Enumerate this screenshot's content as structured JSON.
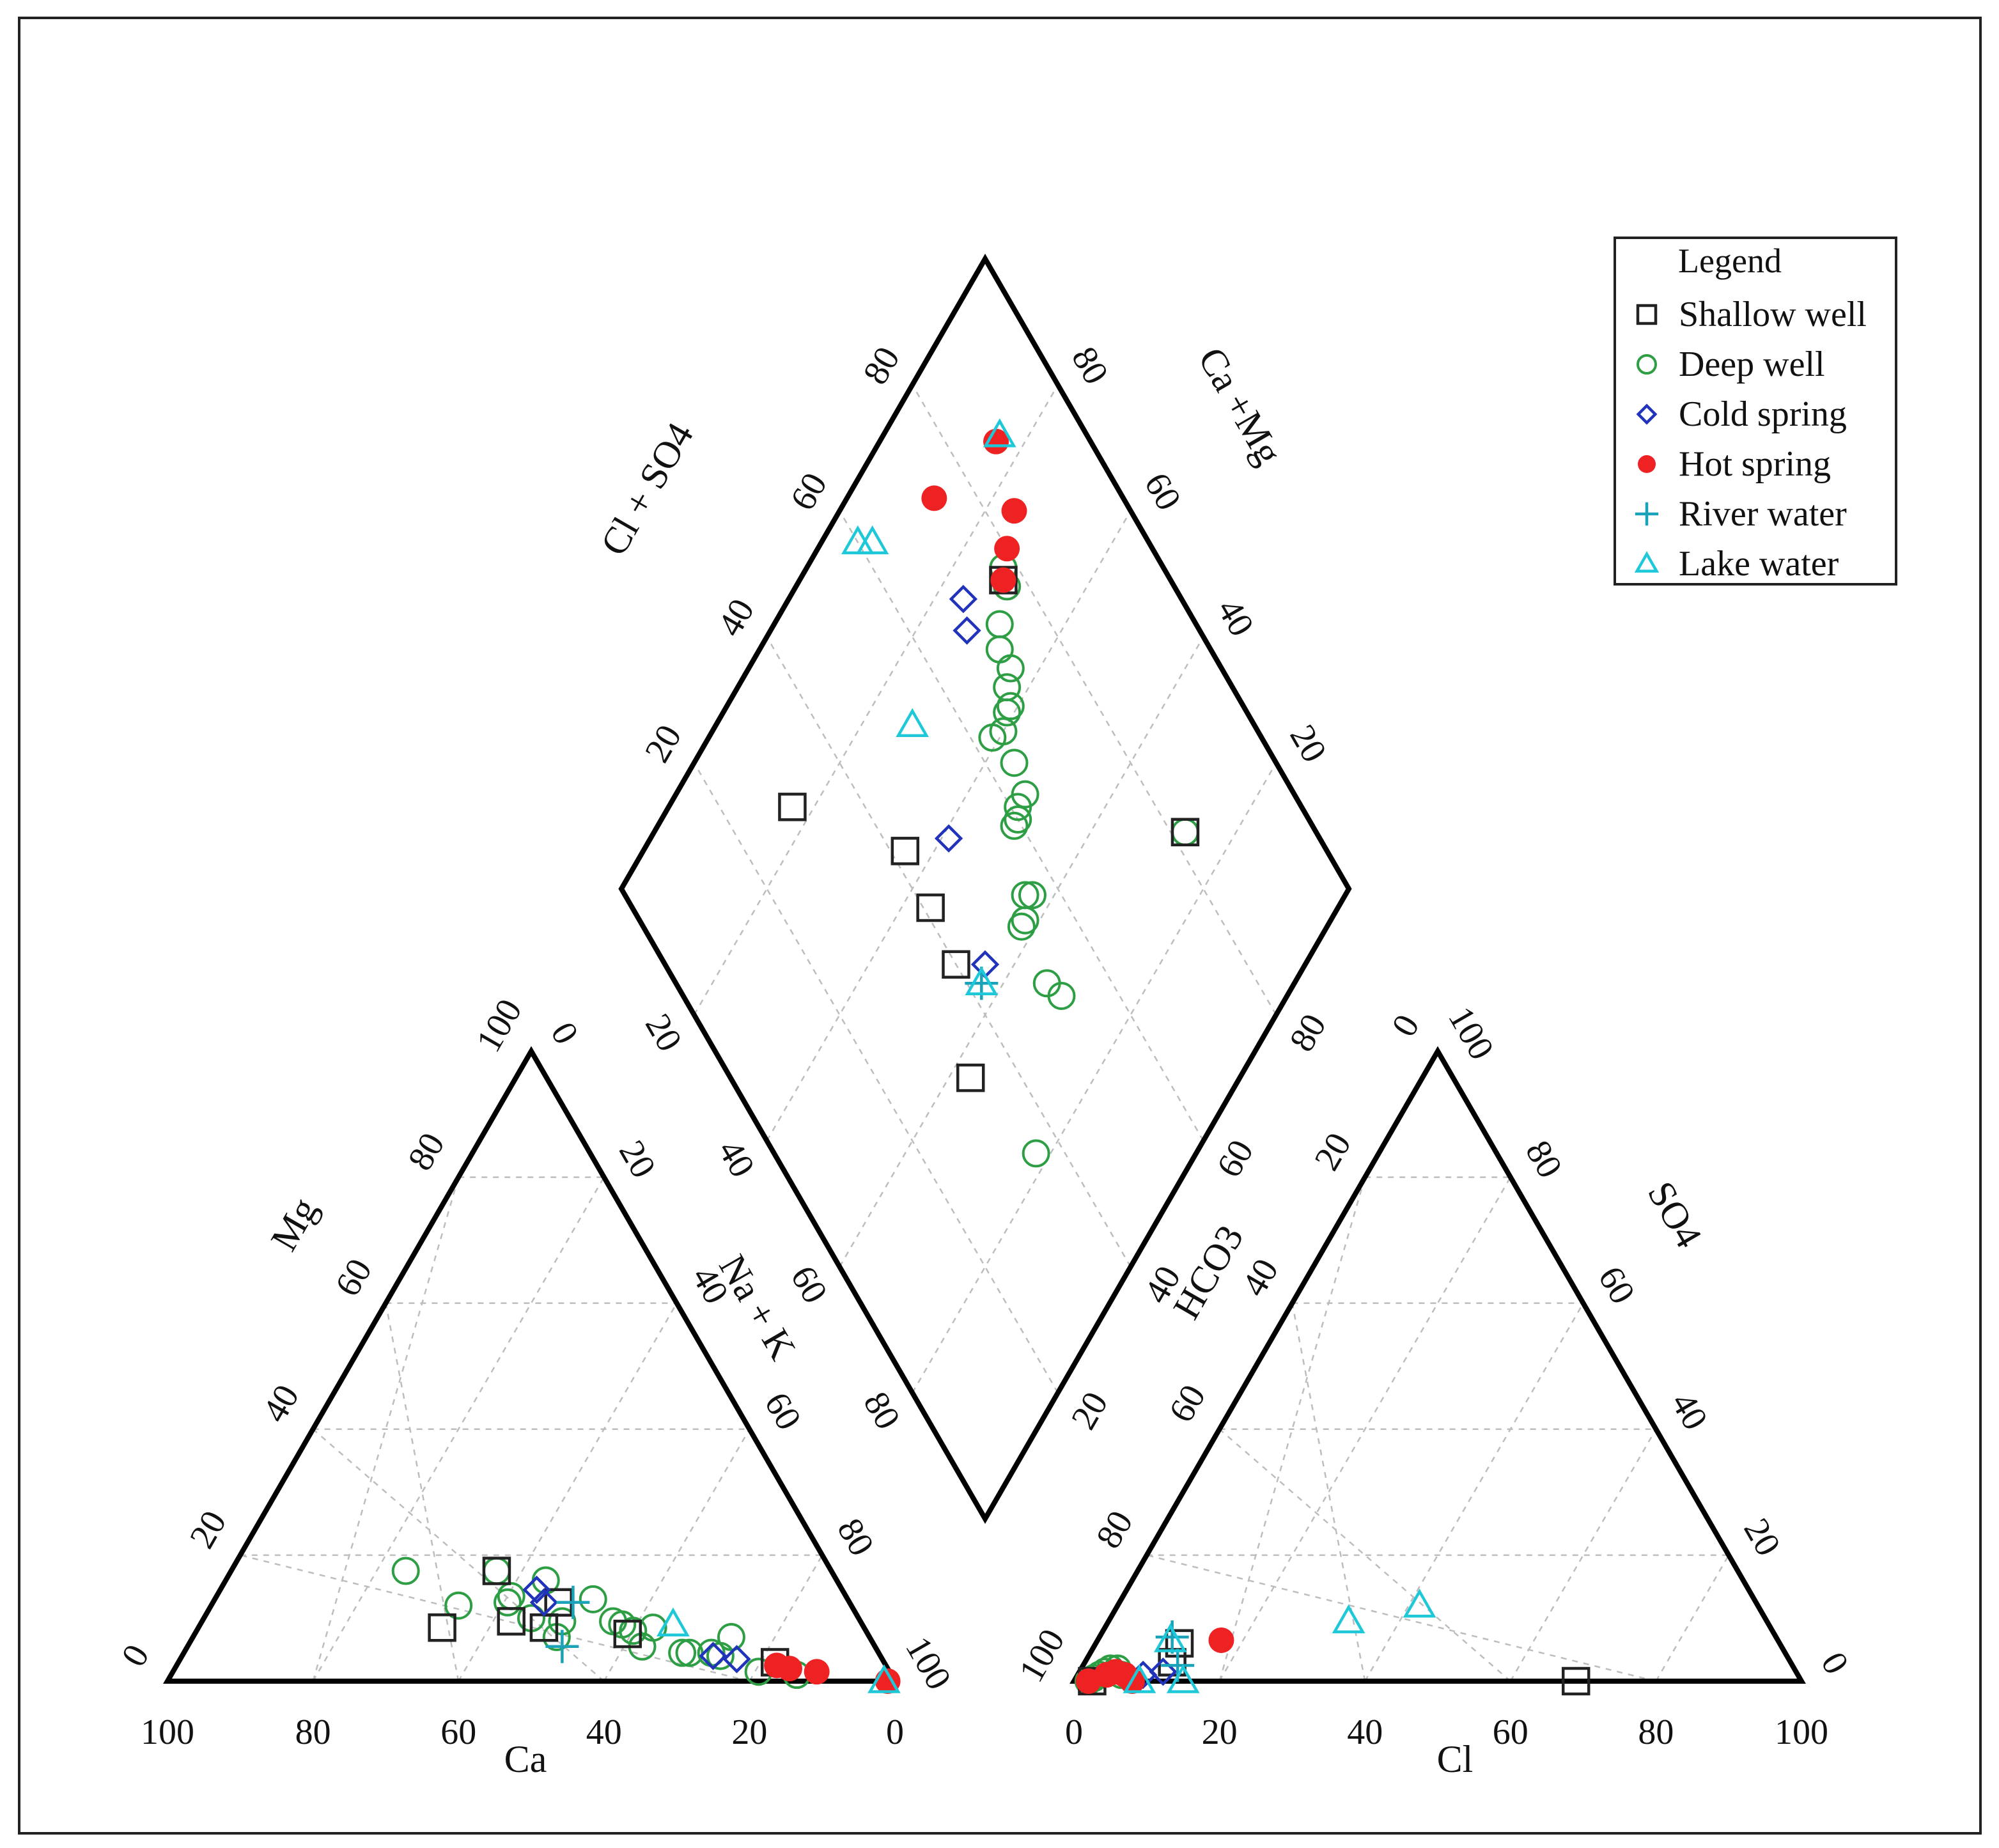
{
  "chart_data": {
    "type": "scatter",
    "subtype": "piper-diagram",
    "legend": {
      "title": "Legend",
      "placement": "top-right",
      "entries": [
        {
          "key": "shallow",
          "label": "Shallow well",
          "marker": "square",
          "color": "#222222"
        },
        {
          "key": "deep",
          "label": "Deep well",
          "marker": "circle",
          "color": "#2e9e45"
        },
        {
          "key": "cold",
          "label": "Cold spring",
          "marker": "diamond",
          "color": "#2233bb"
        },
        {
          "key": "hot",
          "label": "Hot spring",
          "marker": "filled-circle",
          "color": "#ee2222"
        },
        {
          "key": "river",
          "label": "River water",
          "marker": "plus",
          "color": "#1aa3b8"
        },
        {
          "key": "lake",
          "label": "Lake water",
          "marker": "triangle",
          "color": "#1ec8d8"
        }
      ]
    },
    "axes": {
      "cation_bottom": {
        "label": "Ca",
        "ticks": [
          "100",
          "80",
          "60",
          "40",
          "20",
          "0"
        ]
      },
      "cation_left": {
        "label": "Mg",
        "ticks": [
          "0",
          "20",
          "40",
          "60",
          "80",
          "100"
        ]
      },
      "cation_right": {
        "label": "Na + K",
        "ticks": [
          "0",
          "20",
          "40",
          "60",
          "80",
          "100"
        ]
      },
      "anion_bottom": {
        "label": "Cl",
        "ticks": [
          "0",
          "20",
          "40",
          "60",
          "80",
          "100"
        ]
      },
      "anion_left": {
        "label": "HCO3",
        "ticks": [
          "100",
          "80",
          "60",
          "40",
          "20",
          "0"
        ]
      },
      "anion_right": {
        "label": "SO4",
        "ticks": [
          "100",
          "80",
          "60",
          "40",
          "20",
          "0"
        ]
      },
      "diamond_left": {
        "label": "Cl + SO4",
        "ticks": [
          "20",
          "40",
          "60",
          "80"
        ]
      },
      "diamond_right": {
        "label": "Ca +Mg",
        "ticks": [
          "80",
          "60",
          "40",
          "20"
        ]
      },
      "diamond_lower_left": {
        "ticks": [
          "20",
          "40",
          "60",
          "80"
        ]
      },
      "diamond_lower_right": {
        "ticks": [
          "20",
          "40",
          "60",
          "80"
        ]
      }
    },
    "cation_points": {
      "shallow": [
        [
          58,
          8.5
        ],
        [
          48,
          9.5
        ],
        [
          44,
          8.5
        ],
        [
          33,
          7.5
        ],
        [
          40,
          12.5
        ],
        [
          46,
          17.5
        ],
        [
          15,
          3
        ]
      ],
      "deep": [
        [
          58.5,
          17.5
        ],
        [
          54,
          12
        ],
        [
          47,
          12.5
        ],
        [
          46,
          13.5
        ],
        [
          45,
          10
        ],
        [
          43,
          7
        ],
        [
          41,
          9.5
        ],
        [
          35,
          13
        ],
        [
          34,
          9.5
        ],
        [
          33,
          9
        ],
        [
          32,
          8
        ],
        [
          32,
          5.5
        ],
        [
          29,
          8.5
        ],
        [
          27,
          4.5
        ],
        [
          26,
          4.5
        ],
        [
          23,
          4.5
        ],
        [
          22,
          4
        ],
        [
          19,
          7
        ],
        [
          18,
          1.5
        ],
        [
          13,
          1
        ],
        [
          46,
          17.5
        ],
        [
          40,
          16
        ]
      ],
      "cold": [
        [
          42,
          14.5
        ],
        [
          42,
          12.5
        ],
        [
          23,
          4
        ],
        [
          20,
          3.5
        ]
      ],
      "hot": [
        [
          15,
          2.5
        ],
        [
          13.5,
          2
        ],
        [
          10,
          1.5
        ],
        [
          1,
          0
        ]
      ],
      "river": [
        [
          38,
          12.5
        ],
        [
          43,
          5.5
        ]
      ],
      "lake": [
        [
          26,
          9
        ],
        [
          1.5,
          0
        ]
      ]
    },
    "anion_points": {
      "shallow": [
        [
          2.5,
          0
        ],
        [
          69,
          0
        ],
        [
          11.5,
          6
        ],
        [
          12,
          3
        ]
      ],
      "deep": [
        [
          2,
          0
        ],
        [
          3,
          1
        ],
        [
          4,
          2
        ],
        [
          5,
          2
        ],
        [
          6,
          1
        ],
        [
          2.5,
          0.5
        ],
        [
          3.5,
          1.5
        ]
      ],
      "cold": [
        [
          9,
          1
        ],
        [
          11.5,
          1.5
        ]
      ],
      "hot": [
        [
          2,
          0
        ],
        [
          4,
          1
        ],
        [
          5,
          1.5
        ],
        [
          6.5,
          1
        ],
        [
          8,
          0
        ],
        [
          17,
          6.5
        ]
      ],
      "river": [
        [
          10,
          7
        ],
        [
          13,
          2.5
        ]
      ],
      "lake": [
        [
          9,
          0
        ],
        [
          15,
          0
        ],
        [
          33,
          9.5
        ],
        [
          41.5,
          12
        ],
        [
          10,
          6.5
        ]
      ]
    },
    "diamond_points": {
      "shallow": [
        [
          82,
          27
        ],
        [
          33,
          37
        ],
        [
          40,
          48
        ],
        [
          41,
          56
        ],
        [
          42,
          64
        ],
        [
          30,
          83
        ],
        [
          77,
          72
        ]
      ],
      "deep": [
        [
          82,
          27
        ],
        [
          36,
          22
        ],
        [
          52,
          31
        ],
        [
          51,
          34
        ],
        [
          52,
          42
        ],
        [
          53,
          42
        ],
        [
          55,
          44
        ],
        [
          56,
          43
        ],
        [
          60,
          51
        ],
        [
          59,
          51
        ],
        [
          61,
          52
        ],
        [
          63,
          52
        ],
        [
          64,
          56
        ],
        [
          63,
          61
        ],
        [
          65,
          60
        ],
        [
          67,
          61
        ],
        [
          68,
          61
        ],
        [
          69,
          63
        ],
        [
          71,
          64
        ],
        [
          71,
          67
        ],
        [
          73,
          69
        ],
        [
          77,
          71
        ],
        [
          78,
          73
        ]
      ],
      "cold": [
        [
          44,
          44
        ],
        [
          49,
          59
        ],
        [
          68,
          73
        ],
        [
          70,
          76
        ]
      ],
      "hot": [
        [
          77,
          72
        ],
        [
          80,
          74
        ],
        [
          84,
          76
        ],
        [
          87,
          84
        ],
        [
          74,
          88
        ]
      ],
      "river": [
        [
          42,
          43
        ]
      ],
      "lake": [
        [
          42,
          43
        ],
        [
          53,
          73
        ],
        [
          88,
          84
        ],
        [
          60,
          95
        ],
        [
          62,
          93
        ]
      ]
    }
  }
}
